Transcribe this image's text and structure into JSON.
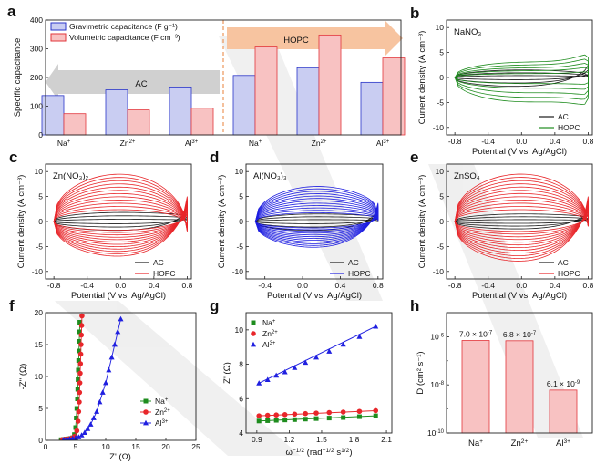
{
  "panel_labels": [
    "a",
    "b",
    "c",
    "d",
    "e",
    "f",
    "g",
    "h"
  ],
  "colors": {
    "black": "#1a1a1a",
    "green": "#1e8c1e",
    "red": "#e8262a",
    "blue": "#1f1fe0",
    "bar_blue_fill": "#c9cdf2",
    "bar_blue_edge": "#2a35c8",
    "bar_red_fill": "#f8c2c2",
    "bar_red_edge": "#e2353b",
    "arrow_gray": "#d0d0d0",
    "arrow_orange": "#f7c4a0"
  },
  "chart_data": [
    {
      "panel": "a",
      "type": "bar",
      "categories": [
        "Na+",
        "Zn2+",
        "Al3+",
        "Na+",
        "Zn2+",
        "Al3+"
      ],
      "category_labels": [
        {
          "base": "Na",
          "sup": "+"
        },
        {
          "base": "Zn",
          "sup": "2+"
        },
        {
          "base": "Al",
          "sup": "3+"
        },
        {
          "base": "Na",
          "sup": "+"
        },
        {
          "base": "Zn",
          "sup": "2+"
        },
        {
          "base": "Al",
          "sup": "3+"
        }
      ],
      "series": [
        {
          "name": "Gravimetric capacitance (F g⁻¹)",
          "values": [
            137,
            157,
            167,
            207,
            234,
            183
          ]
        },
        {
          "name": "Volumetric capacitance (F cm⁻³)",
          "values": [
            74,
            87,
            93,
            306,
            348,
            268
          ]
        }
      ],
      "ylabel": "Specific capacitance",
      "ylim": [
        0,
        400
      ],
      "yticks": [
        "0",
        "100",
        "200",
        "300",
        "400"
      ],
      "region_labels": [
        "AC",
        "HOPC"
      ],
      "legend": "top-left"
    },
    {
      "panel": "b",
      "type": "line",
      "title": "NaNO₃",
      "xlabel": "Potential (V vs. Ag/AgCl)",
      "ylabel": "Current density (A cm⁻³)",
      "xlim": [
        -0.9,
        0.85
      ],
      "ylim": [
        -11.5,
        11.5
      ],
      "xticks": [
        "-0.8",
        "-0.4",
        "0.0",
        "0.4",
        "0.8"
      ],
      "yticks": [
        "-10",
        "-5",
        "0",
        "5",
        "10"
      ],
      "series": [
        {
          "name": "AC",
          "n": 3,
          "range": [
            -0.8,
            0.8
          ],
          "upper_mid": 1.5,
          "lower_mid": -1.8,
          "end_up": 1.8,
          "end_low": 0.6
        },
        {
          "name": "HOPC",
          "n": 5,
          "range": [
            -0.8,
            0.8
          ],
          "upper_mid": 3.0,
          "lower_mid": -4.8,
          "end_up": 7.0,
          "end_low": -9.0,
          "spread": 0.55
        }
      ],
      "legend": "bottom-right"
    },
    {
      "panel": "c",
      "type": "line",
      "title": "Zn(NO₃)₂",
      "xlabel": "Potential (V vs. Ag/AgCl)",
      "ylabel": "Current density (A cm⁻³)",
      "xlim": [
        -0.9,
        0.85
      ],
      "ylim": [
        -11.5,
        11.5
      ],
      "xticks": [
        "-0.8",
        "-0.4",
        "0.0",
        "0.4",
        "0.8"
      ],
      "yticks": [
        "-10",
        "-5",
        "0",
        "5",
        "10"
      ],
      "series": [
        {
          "name": "AC",
          "n": 3,
          "range": [
            -0.8,
            0.8
          ],
          "upper_mid": 1.8,
          "lower_mid": -1.8,
          "end_up": 2.5,
          "end_low": 0.5
        },
        {
          "name": "HOPC",
          "n": 12,
          "range": [
            -0.8,
            0.8
          ],
          "upper_mid": 9.5,
          "lower_mid": -7.0,
          "end_up": 7.5,
          "end_low": -2.0,
          "spread": 0.9
        }
      ],
      "legend": "bottom-right"
    },
    {
      "panel": "d",
      "type": "line",
      "title": "Al(NO₃)₃",
      "xlabel": "Potential (V vs. Ag/AgCl)",
      "ylabel": "Current density (A cm⁻³)",
      "xlim": [
        -0.6,
        0.85
      ],
      "ylim": [
        -11.5,
        11.5
      ],
      "xticks": [
        "-0.4",
        "0.0",
        "0.4",
        "0.8"
      ],
      "yticks": [
        "-10",
        "-5",
        "0",
        "5",
        "10"
      ],
      "series": [
        {
          "name": "AC",
          "n": 3,
          "range": [
            -0.5,
            0.8
          ],
          "upper_mid": 1.5,
          "lower_mid": -1.8,
          "end_up": 2.0,
          "end_low": 0.5
        },
        {
          "name": "HOPC",
          "n": 12,
          "range": [
            -0.5,
            0.8
          ],
          "upper_mid": 7.0,
          "lower_mid": -5.2,
          "end_up": 8.0,
          "end_low": -1.5,
          "spread": 0.35
        }
      ],
      "legend": "bottom-right"
    },
    {
      "panel": "e",
      "type": "line",
      "title": "ZnSO₄",
      "xlabel": "Potential (V vs. Ag/AgCl)",
      "ylabel": "Current density (A cm⁻³)",
      "xlim": [
        -0.9,
        0.85
      ],
      "ylim": [
        -11.5,
        11.5
      ],
      "xticks": [
        "-0.8",
        "-0.4",
        "0.0",
        "0.4",
        "0.8"
      ],
      "yticks": [
        "-10",
        "-5",
        "0",
        "5",
        "10"
      ],
      "series": [
        {
          "name": "AC",
          "n": 3,
          "range": [
            -0.8,
            0.8
          ],
          "upper_mid": 1.5,
          "lower_mid": -1.5,
          "end_up": 2.0,
          "end_low": 0.5
        },
        {
          "name": "HOPC",
          "n": 12,
          "range": [
            -0.8,
            0.8
          ],
          "upper_mid": 9.5,
          "lower_mid": -8.0,
          "end_up": 8.5,
          "end_low": -3.0,
          "spread": 0.85
        }
      ],
      "legend": "bottom-right"
    },
    {
      "panel": "f",
      "type": "scatter",
      "xlabel": "Z' (Ω)",
      "ylabel": "-Z'' (Ω)",
      "xlim": [
        0,
        25
      ],
      "ylim": [
        0,
        20
      ],
      "xticks": [
        "0",
        "5",
        "10",
        "15",
        "20",
        "25"
      ],
      "yticks": [
        "0",
        "5",
        "10",
        "15",
        "20"
      ],
      "series": [
        {
          "name": "Na+",
          "label": {
            "base": "Na",
            "sup": "+"
          },
          "marker": "square",
          "points": [
            [
              2.6,
              0.1
            ],
            [
              3,
              0.15
            ],
            [
              3.4,
              0.2
            ],
            [
              3.8,
              0.25
            ],
            [
              4.2,
              0.3
            ],
            [
              4.5,
              0.4
            ],
            [
              4.8,
              0.9
            ],
            [
              5,
              2
            ],
            [
              5.1,
              3.5
            ],
            [
              5.2,
              5
            ],
            [
              5.3,
              6.5
            ],
            [
              5.35,
              8
            ],
            [
              5.4,
              9.5
            ],
            [
              5.45,
              11
            ],
            [
              5.5,
              12.5
            ],
            [
              5.55,
              14
            ],
            [
              5.6,
              15.5
            ],
            [
              5.65,
              17
            ],
            [
              5.7,
              18.5
            ]
          ]
        },
        {
          "name": "Zn2+",
          "label": {
            "base": "Zn",
            "sup": "2+"
          },
          "marker": "circle",
          "points": [
            [
              2.8,
              0.1
            ],
            [
              3.2,
              0.15
            ],
            [
              3.6,
              0.2
            ],
            [
              4,
              0.25
            ],
            [
              4.4,
              0.35
            ],
            [
              4.8,
              0.6
            ],
            [
              5.2,
              1.5
            ],
            [
              5.4,
              3
            ],
            [
              5.5,
              4.5
            ],
            [
              5.6,
              6
            ],
            [
              5.65,
              7.5
            ],
            [
              5.7,
              9
            ],
            [
              5.75,
              10.5
            ],
            [
              5.8,
              12
            ],
            [
              5.85,
              13.5
            ],
            [
              5.9,
              15
            ],
            [
              5.95,
              16.5
            ],
            [
              6,
              18
            ],
            [
              6.05,
              19.5
            ]
          ]
        },
        {
          "name": "Al3+",
          "label": {
            "base": "Al",
            "sup": "3+"
          },
          "marker": "triangle",
          "points": [
            [
              3,
              0.1
            ],
            [
              3.5,
              0.15
            ],
            [
              4,
              0.2
            ],
            [
              4.5,
              0.3
            ],
            [
              5,
              0.4
            ],
            [
              5.5,
              0.5
            ],
            [
              6,
              0.8
            ],
            [
              6.5,
              1.2
            ],
            [
              7,
              1.8
            ],
            [
              7.5,
              2.5
            ],
            [
              8,
              3.5
            ],
            [
              8.5,
              4.5
            ],
            [
              9,
              6
            ],
            [
              9.5,
              7.5
            ],
            [
              10,
              9
            ],
            [
              10.5,
              11
            ],
            [
              11,
              13
            ],
            [
              11.5,
              15
            ],
            [
              12,
              17
            ],
            [
              12.5,
              19
            ]
          ]
        }
      ],
      "legend": "bottom-right"
    },
    {
      "panel": "g",
      "type": "scatter",
      "xlabel": "ω^(-1/2) (rad^(-1/2) s^(1/2))",
      "ylabel": "Z' (Ω)",
      "xlim": [
        0.8,
        2.15
      ],
      "ylim": [
        4,
        11
      ],
      "xticks": [
        "0.9",
        "1.2",
        "1.5",
        "1.8",
        "2.1"
      ],
      "yticks": [
        "4",
        "6",
        "8",
        "10"
      ],
      "series": [
        {
          "name": "Na+",
          "label": {
            "base": "Na",
            "sup": "+"
          },
          "marker": "square",
          "points": [
            [
              0.92,
              4.7
            ],
            [
              1.0,
              4.72
            ],
            [
              1.08,
              4.74
            ],
            [
              1.16,
              4.76
            ],
            [
              1.25,
              4.78
            ],
            [
              1.35,
              4.81
            ],
            [
              1.45,
              4.84
            ],
            [
              1.57,
              4.87
            ],
            [
              1.7,
              4.9
            ],
            [
              1.85,
              4.95
            ],
            [
              2.0,
              5.0
            ]
          ]
        },
        {
          "name": "Zn2+",
          "label": {
            "base": "Zn",
            "sup": "2+"
          },
          "marker": "circle",
          "points": [
            [
              0.92,
              5.0
            ],
            [
              1.0,
              5.03
            ],
            [
              1.08,
              5.05
            ],
            [
              1.16,
              5.07
            ],
            [
              1.25,
              5.1
            ],
            [
              1.35,
              5.13
            ],
            [
              1.45,
              5.16
            ],
            [
              1.57,
              5.19
            ],
            [
              1.7,
              5.22
            ],
            [
              1.85,
              5.26
            ],
            [
              2.0,
              5.3
            ]
          ]
        },
        {
          "name": "Al3+",
          "label": {
            "base": "Al",
            "sup": "3+"
          },
          "marker": "triangle",
          "points": [
            [
              0.92,
              6.9
            ],
            [
              1.0,
              7.1
            ],
            [
              1.08,
              7.35
            ],
            [
              1.16,
              7.55
            ],
            [
              1.25,
              7.8
            ],
            [
              1.35,
              8.1
            ],
            [
              1.45,
              8.4
            ],
            [
              1.57,
              8.75
            ],
            [
              1.7,
              9.15
            ],
            [
              1.85,
              9.6
            ],
            [
              2.0,
              10.2
            ]
          ]
        }
      ],
      "legend": "top-left"
    },
    {
      "panel": "h",
      "type": "bar",
      "categories": [
        "Na+",
        "Zn2+",
        "Al3+"
      ],
      "category_labels": [
        {
          "base": "Na",
          "sup": "+"
        },
        {
          "base": "Zn",
          "sup": "2+"
        },
        {
          "base": "Al",
          "sup": "3+"
        }
      ],
      "values": [
        7e-07,
        6.8e-07,
        6.1e-09
      ],
      "value_labels": [
        {
          "m": "7.0 × 10",
          "e": "-7"
        },
        {
          "m": "6.8 × 10",
          "e": "-7"
        },
        {
          "m": "6.1 × 10",
          "e": "-9"
        }
      ],
      "ylabel": "D (cm² s⁻¹)",
      "yscale": "log",
      "ylim": [
        1e-10,
        1e-05
      ],
      "yticks": [
        {
          "m": "10",
          "e": "-10"
        },
        {
          "m": "10",
          "e": "-8"
        },
        {
          "m": "10",
          "e": "-6"
        }
      ]
    }
  ]
}
